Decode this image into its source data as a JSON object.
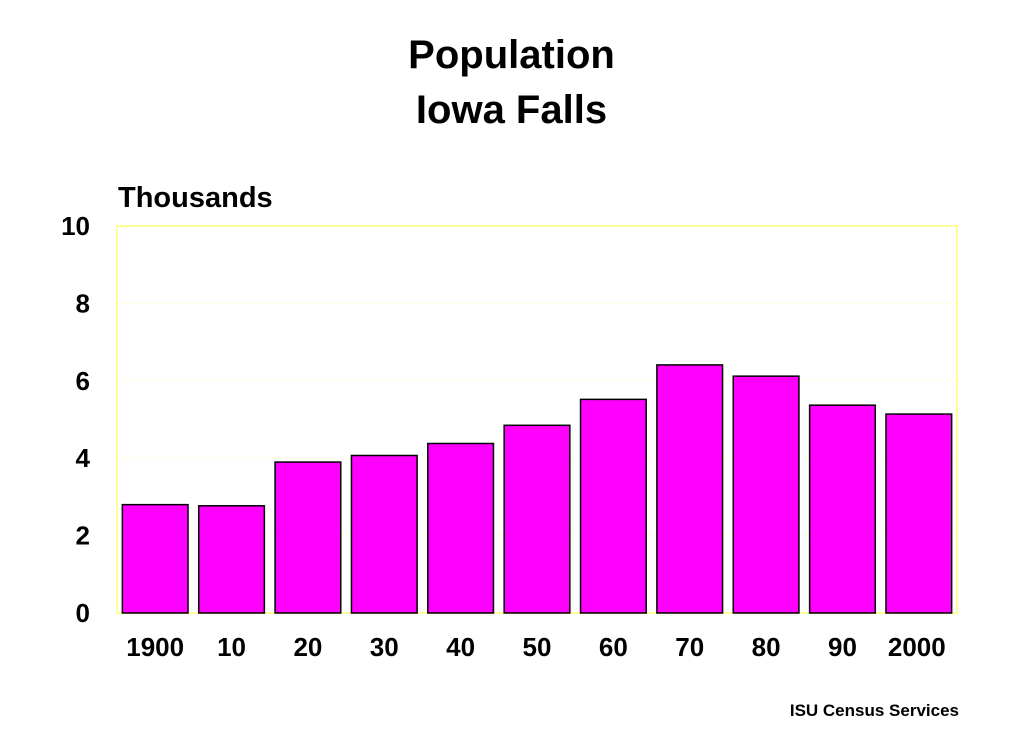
{
  "chart_data": {
    "type": "bar",
    "title": "Population",
    "subtitle": "Iowa Falls",
    "ylabel": "Thousands",
    "xlabel": "",
    "categories": [
      "1900",
      "10",
      "20",
      "30",
      "40",
      "50",
      "60",
      "70",
      "80",
      "90",
      "2000"
    ],
    "values": [
      2.8,
      2.77,
      3.9,
      4.07,
      4.38,
      4.85,
      5.52,
      6.41,
      6.12,
      5.37,
      5.14
    ],
    "ylim": [
      0,
      10
    ],
    "yticks": [
      "0",
      "2",
      "4",
      "6",
      "8",
      "10"
    ],
    "grid": true,
    "legend": "none",
    "colors": {
      "bar_fill": "#ff00ff",
      "bar_stroke": "#000000",
      "frame": "#ffff99",
      "grid": "#fffde0"
    }
  },
  "footer": {
    "source": "ISU Census Services"
  }
}
